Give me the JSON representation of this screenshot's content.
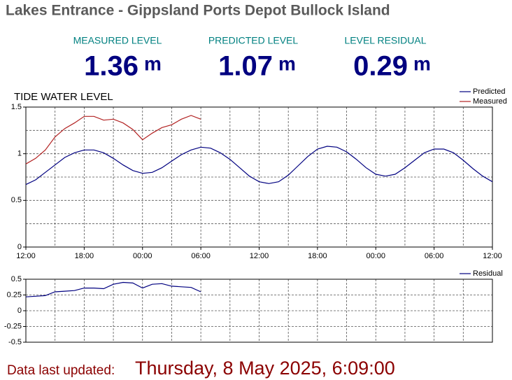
{
  "header": {
    "title": "Lakes Entrance - Gippsland Ports Depot Bullock Island",
    "stats": [
      {
        "label": "MEASURED LEVEL",
        "value": 1.36,
        "unit": "m"
      },
      {
        "label": "PREDICTED LEVEL",
        "value": 1.07,
        "unit": "m"
      },
      {
        "label": "LEVEL RESIDUAL",
        "value": 0.29,
        "unit": "m"
      }
    ]
  },
  "chart_data": [
    {
      "type": "line",
      "title": "TIDE WATER LEVEL",
      "x": [
        0,
        1,
        2,
        3,
        4,
        5,
        6,
        7,
        8,
        9,
        10,
        11,
        12,
        13,
        14,
        15,
        16,
        17,
        18,
        19,
        20,
        21,
        22,
        23,
        24,
        25,
        26,
        27,
        28,
        29,
        30,
        31,
        32,
        33,
        34,
        35,
        36,
        37,
        38,
        39,
        40,
        41,
        42,
        43,
        44,
        45,
        46,
        47,
        48
      ],
      "xlim": [
        0,
        48
      ],
      "xticks": [
        {
          "value": 0,
          "label": "12:00"
        },
        {
          "value": 6,
          "label": "18:00"
        },
        {
          "value": 12,
          "label": "00:00"
        },
        {
          "value": 18,
          "label": "06:00"
        },
        {
          "value": 24,
          "label": "12:00"
        },
        {
          "value": 30,
          "label": "18:00"
        },
        {
          "value": 36,
          "label": "00:00"
        },
        {
          "value": 42,
          "label": "06:00"
        },
        {
          "value": 48,
          "label": "12:00"
        }
      ],
      "xgrid": [
        3,
        9,
        15,
        21,
        27,
        33,
        39,
        45
      ],
      "ylim": [
        0,
        1.5
      ],
      "yticks": [
        0,
        0.5,
        1,
        1.5
      ],
      "ygrid": [
        0.25,
        0.75,
        1.25
      ],
      "grid": true,
      "legend": "top-right",
      "series": [
        {
          "name": "Predicted",
          "color": "#000080",
          "values": [
            0.67,
            0.72,
            0.8,
            0.88,
            0.96,
            1.01,
            1.04,
            1.04,
            1.01,
            0.95,
            0.88,
            0.82,
            0.79,
            0.8,
            0.85,
            0.92,
            0.99,
            1.04,
            1.07,
            1.06,
            1.01,
            0.94,
            0.85,
            0.76,
            0.7,
            0.68,
            0.7,
            0.77,
            0.87,
            0.97,
            1.05,
            1.08,
            1.07,
            1.02,
            0.94,
            0.85,
            0.78,
            0.76,
            0.78,
            0.85,
            0.93,
            1.01,
            1.05,
            1.05,
            1.01,
            0.93,
            0.84,
            0.76,
            0.7
          ]
        },
        {
          "name": "Measured",
          "color": "#b22222",
          "values": [
            0.89,
            0.95,
            1.04,
            1.18,
            1.27,
            1.33,
            1.4,
            1.4,
            1.36,
            1.37,
            1.33,
            1.26,
            1.15,
            1.22,
            1.28,
            1.31,
            1.37,
            1.41,
            1.37,
            null,
            null,
            null,
            null,
            null,
            null,
            null,
            null,
            null,
            null,
            null,
            null,
            null,
            null,
            null,
            null,
            null,
            null,
            null,
            null,
            null,
            null,
            null,
            null,
            null,
            null,
            null,
            null,
            null,
            null
          ]
        }
      ]
    },
    {
      "type": "line",
      "x": [
        0,
        1,
        2,
        3,
        4,
        5,
        6,
        7,
        8,
        9,
        10,
        11,
        12,
        13,
        14,
        15,
        16,
        17,
        18
      ],
      "xlim": [
        0,
        48
      ],
      "xgrid": [
        3,
        6,
        9,
        12,
        15,
        18,
        21,
        24,
        27,
        30,
        33,
        36,
        39,
        42,
        45
      ],
      "ylim": [
        -0.5,
        0.5
      ],
      "yticks": [
        -0.5,
        -0.25,
        0,
        0.25,
        0.5
      ],
      "grid": true,
      "legend": "top-right",
      "series": [
        {
          "name": "Residual",
          "color": "#000080",
          "values": [
            0.22,
            0.23,
            0.24,
            0.3,
            0.31,
            0.32,
            0.36,
            0.36,
            0.35,
            0.42,
            0.45,
            0.44,
            0.36,
            0.42,
            0.43,
            0.39,
            0.38,
            0.37,
            0.3
          ]
        }
      ]
    }
  ],
  "footer": {
    "label": "Data last updated:",
    "value": "Thursday, 8 May 2025, 6:09:00"
  }
}
